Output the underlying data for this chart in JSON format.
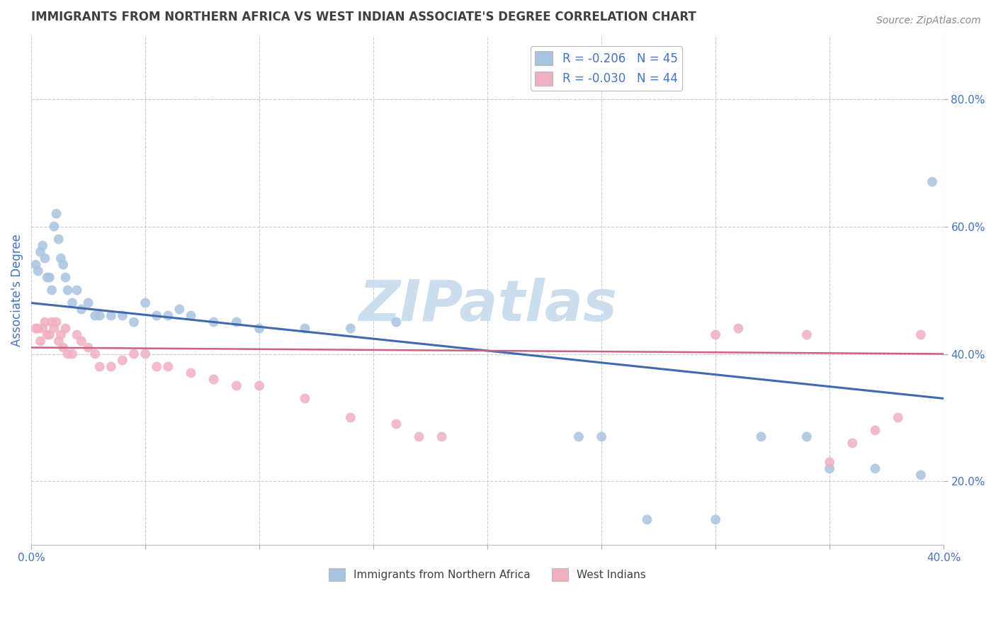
{
  "title": "IMMIGRANTS FROM NORTHERN AFRICA VS WEST INDIAN ASSOCIATE'S DEGREE CORRELATION CHART",
  "source_text": "Source: ZipAtlas.com",
  "ylabel": "Associate's Degree",
  "xlim": [
    0.0,
    0.4
  ],
  "ylim": [
    0.1,
    0.9
  ],
  "xticks": [
    0.0,
    0.05,
    0.1,
    0.15,
    0.2,
    0.25,
    0.3,
    0.35,
    0.4
  ],
  "yticks": [
    0.2,
    0.4,
    0.6,
    0.8
  ],
  "legend_label_blue": "R = -0.206   N = 45",
  "legend_label_pink": "R = -0.030   N = 44",
  "blue_color": "#a8c4e0",
  "pink_color": "#f0b0c0",
  "blue_line_color": "#4169b0",
  "pink_line_color": "#d06080",
  "watermark": "ZIPatlas",
  "watermark_color": "#ccdded",
  "background_color": "#ffffff",
  "grid_color": "#c8ccd0",
  "title_color": "#404040",
  "axis_label_color": "#4472c4",
  "tick_color": "#4472c4",
  "blue_scatter_x": [
    0.002,
    0.003,
    0.004,
    0.005,
    0.006,
    0.007,
    0.008,
    0.009,
    0.01,
    0.011,
    0.012,
    0.013,
    0.014,
    0.015,
    0.016,
    0.018,
    0.02,
    0.022,
    0.025,
    0.028,
    0.03,
    0.035,
    0.04,
    0.045,
    0.05,
    0.055,
    0.06,
    0.065,
    0.07,
    0.08,
    0.09,
    0.1,
    0.12,
    0.14,
    0.16,
    0.24,
    0.25,
    0.27,
    0.3,
    0.32,
    0.34,
    0.35,
    0.37,
    0.39,
    0.395
  ],
  "blue_scatter_y": [
    0.54,
    0.53,
    0.56,
    0.57,
    0.55,
    0.52,
    0.52,
    0.5,
    0.6,
    0.62,
    0.58,
    0.55,
    0.54,
    0.52,
    0.5,
    0.48,
    0.5,
    0.47,
    0.48,
    0.46,
    0.46,
    0.46,
    0.46,
    0.45,
    0.48,
    0.46,
    0.46,
    0.47,
    0.46,
    0.45,
    0.45,
    0.44,
    0.44,
    0.44,
    0.45,
    0.27,
    0.27,
    0.14,
    0.14,
    0.27,
    0.27,
    0.22,
    0.22,
    0.21,
    0.67
  ],
  "pink_scatter_x": [
    0.002,
    0.003,
    0.004,
    0.005,
    0.006,
    0.007,
    0.008,
    0.009,
    0.01,
    0.011,
    0.012,
    0.013,
    0.014,
    0.015,
    0.016,
    0.018,
    0.02,
    0.022,
    0.025,
    0.028,
    0.03,
    0.035,
    0.04,
    0.045,
    0.05,
    0.055,
    0.06,
    0.07,
    0.08,
    0.09,
    0.1,
    0.12,
    0.14,
    0.16,
    0.17,
    0.18,
    0.3,
    0.31,
    0.34,
    0.35,
    0.36,
    0.37,
    0.38,
    0.39
  ],
  "pink_scatter_y": [
    0.44,
    0.44,
    0.42,
    0.44,
    0.45,
    0.43,
    0.43,
    0.45,
    0.44,
    0.45,
    0.42,
    0.43,
    0.41,
    0.44,
    0.4,
    0.4,
    0.43,
    0.42,
    0.41,
    0.4,
    0.38,
    0.38,
    0.39,
    0.4,
    0.4,
    0.38,
    0.38,
    0.37,
    0.36,
    0.35,
    0.35,
    0.33,
    0.3,
    0.29,
    0.27,
    0.27,
    0.43,
    0.44,
    0.43,
    0.23,
    0.26,
    0.28,
    0.3,
    0.43
  ]
}
